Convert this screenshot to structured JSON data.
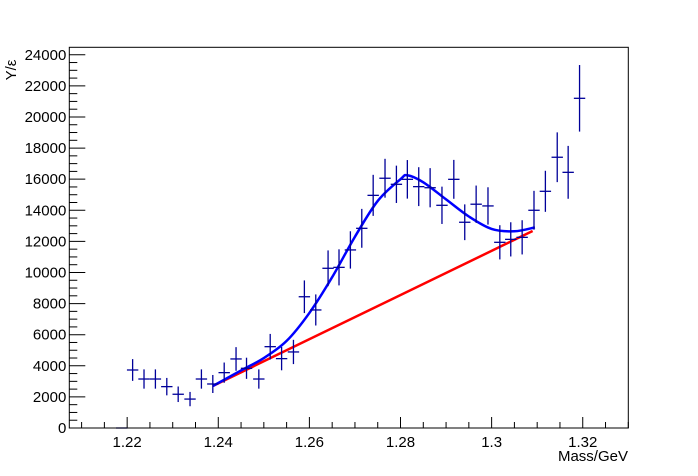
{
  "chart_data": {
    "type": "scatter",
    "title": "",
    "xlabel": "Mass/GeV",
    "ylabel": "Y/ε",
    "xlim": [
      1.2073,
      1.33
    ],
    "ylim": [
      0,
      24480
    ],
    "grid": false,
    "x_ticks": [
      "1.22",
      "1.24",
      "1.26",
      "1.28",
      "1.3",
      "1.32"
    ],
    "x_tick_values": [
      1.22,
      1.24,
      1.26,
      1.28,
      1.3,
      1.32
    ],
    "y_ticks": [
      "0",
      "2000",
      "4000",
      "6000",
      "8000",
      "10000",
      "12000",
      "14000",
      "16000",
      "18000",
      "20000",
      "22000",
      "24000"
    ],
    "y_tick_values": [
      0,
      2000,
      4000,
      6000,
      8000,
      10000,
      12000,
      14000,
      16000,
      18000,
      20000,
      22000,
      24000
    ],
    "colors": {
      "data": "#000099",
      "total_fit": "#0000ff",
      "background_fit": "#ff0000",
      "frame": "#000000"
    },
    "series": [
      {
        "type": "errorbar",
        "x": [
          1.2188,
          1.2212,
          1.2237,
          1.2262,
          1.2287,
          1.2312,
          1.2338,
          1.2363,
          1.2388,
          1.2413,
          1.2439,
          1.2462,
          1.2489,
          1.2514,
          1.2539,
          1.2565,
          1.2589,
          1.2614,
          1.2641,
          1.2665,
          1.269,
          1.2715,
          1.274,
          1.2766,
          1.2791,
          1.2815,
          1.284,
          1.2865,
          1.2891,
          1.2917,
          1.2941,
          1.2966,
          1.2992,
          1.3018,
          1.3042,
          1.3067,
          1.3093,
          1.3118,
          1.3144,
          1.3168,
          1.3193
        ],
        "y": [
          0,
          3730,
          3150,
          3150,
          2660,
          2170,
          1860,
          3150,
          2830,
          3560,
          4440,
          3840,
          3150,
          5230,
          4460,
          4890,
          8440,
          7590,
          10270,
          10330,
          11450,
          12840,
          14960,
          16060,
          15670,
          15990,
          15520,
          15450,
          14320,
          15990,
          13230,
          14390,
          14280,
          11940,
          12130,
          12260,
          14000,
          15220,
          17410,
          16440,
          21200
        ],
        "yerr": [
          0,
          700,
          620,
          620,
          560,
          500,
          460,
          620,
          580,
          650,
          760,
          680,
          620,
          820,
          750,
          780,
          1050,
          1000,
          1150,
          1160,
          1200,
          1250,
          1320,
          1250,
          1200,
          1240,
          1250,
          1260,
          1200,
          1250,
          1150,
          1200,
          1200,
          1100,
          1100,
          1100,
          1250,
          1320,
          1600,
          1700,
          2140
        ],
        "xerr": 0.00125
      },
      {
        "type": "line",
        "role": "total_fit",
        "x": [
          1.2388,
          1.245,
          1.25,
          1.255,
          1.26,
          1.265,
          1.27,
          1.275,
          1.28,
          1.2815,
          1.285,
          1.29,
          1.295,
          1.3,
          1.305,
          1.3095
        ],
        "y": [
          2700,
          3700,
          4500,
          5600,
          7400,
          9700,
          12300,
          14600,
          16000,
          16250,
          15800,
          14700,
          13600,
          12800,
          12650,
          12900
        ]
      },
      {
        "type": "line",
        "role": "background_fit",
        "x": [
          1.2388,
          1.309
        ],
        "y": [
          2700,
          12670
        ]
      }
    ]
  }
}
